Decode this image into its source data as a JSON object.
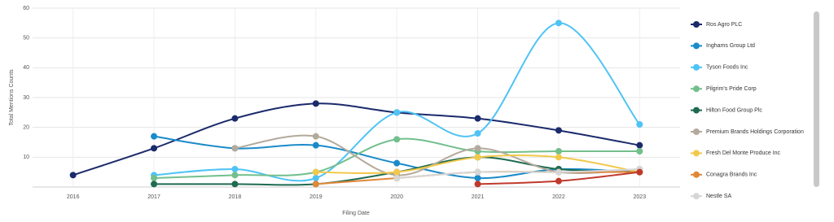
{
  "chart_data": {
    "type": "line",
    "y_label": "Total Mentions Counts",
    "x_label": "Filing Date",
    "x": [
      2016,
      2017,
      2018,
      2019,
      2020,
      2021,
      2022,
      2023
    ],
    "xlim": [
      2015.5,
      2023.5
    ],
    "xticks": [
      2016,
      2017,
      2018,
      2019,
      2020,
      2021,
      2022,
      2023
    ],
    "ylim": [
      0,
      60
    ],
    "yticks": [
      10,
      20,
      30,
      40,
      50,
      60
    ],
    "grid": true,
    "legend": "right",
    "series": [
      {
        "name": "Ros Agro PLC",
        "color": "#1b2a6b",
        "values": [
          4,
          13,
          23,
          28,
          25,
          23,
          19,
          14
        ]
      },
      {
        "name": "Inghams Group Ltd",
        "color": "#1a8bc9",
        "values": [
          null,
          17,
          13,
          14,
          8,
          3,
          6,
          5
        ]
      },
      {
        "name": "Tyson Foods Inc",
        "color": "#4fc3f5",
        "values": [
          null,
          4,
          6,
          3,
          25,
          18,
          55,
          21
        ]
      },
      {
        "name": "Pilgrim's Pride Corp",
        "color": "#72bf8c",
        "values": [
          null,
          3,
          4,
          5,
          16,
          12,
          12,
          12
        ]
      },
      {
        "name": "Hilton Food Group Plc",
        "color": "#1e6b50",
        "values": [
          null,
          1,
          1,
          1,
          5,
          10,
          6,
          5
        ]
      },
      {
        "name": "Premium Brands Holdings Corporation",
        "color": "#b3aa9c",
        "values": [
          null,
          null,
          13,
          17,
          4,
          13,
          5,
          6
        ]
      },
      {
        "name": "Fresh Del Monte Produce Inc",
        "color": "#f2c94c",
        "values": [
          null,
          null,
          null,
          5,
          5,
          10,
          10,
          5
        ]
      },
      {
        "name": "Conagra Brands Inc",
        "color": "#e0883a",
        "values": [
          null,
          null,
          null,
          1,
          3,
          5,
          5,
          5
        ]
      },
      {
        "name": "Nestle SA",
        "color": "#d6d6d6",
        "values": [
          null,
          null,
          null,
          null,
          3,
          5,
          5,
          6
        ]
      },
      {
        "color": "#c0392b",
        "values": [
          null,
          null,
          null,
          null,
          null,
          1,
          2,
          5
        ]
      }
    ]
  }
}
